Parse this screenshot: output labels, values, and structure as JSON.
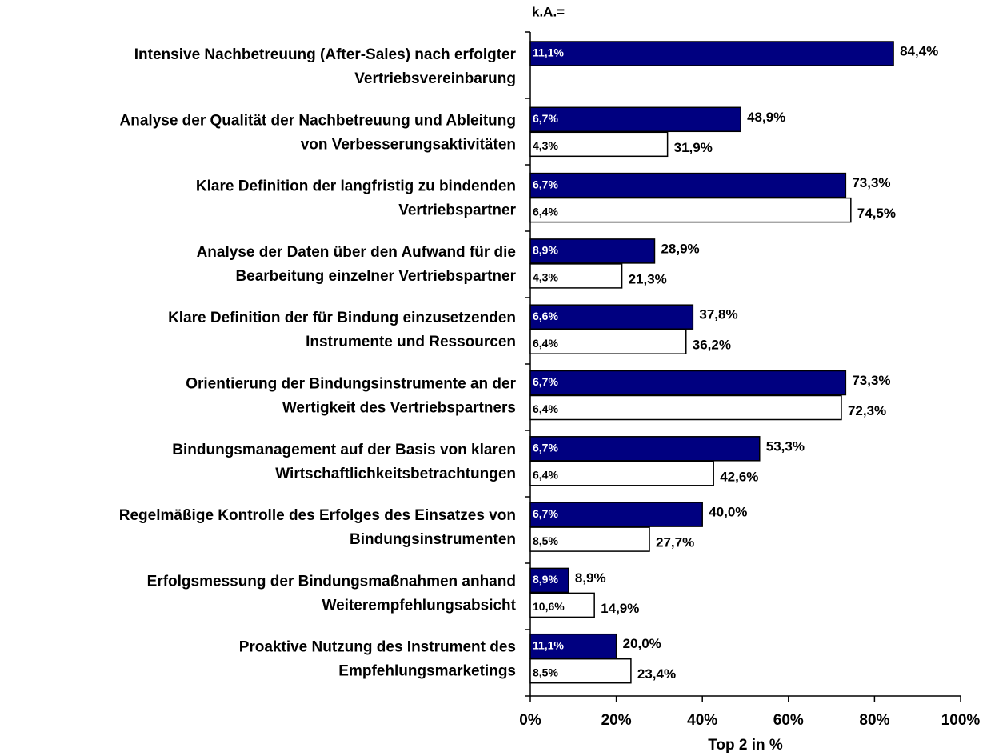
{
  "chart_data": {
    "type": "bar",
    "orientation": "horizontal",
    "ka_title": "k.A.=",
    "xlabel": "Top 2 in %",
    "categories": [
      [
        "Intensive Nachbetreuung (After-Sales) nach erfolgter",
        "Vertriebsvereinbarung"
      ],
      [
        "Analyse der Qualität der Nachbetreuung und Ableitung",
        "von Verbesserungsaktivitäten"
      ],
      [
        "Klare Definition der langfristig zu bindenden",
        "Vertriebspartner"
      ],
      [
        "Analyse der Daten über den Aufwand für die",
        "Bearbeitung einzelner Vertriebspartner"
      ],
      [
        "Klare Definition der für Bindung einzusetzenden",
        "Instrumente und Ressourcen"
      ],
      [
        "Orientierung der Bindungsinstrumente an der",
        "Wertigkeit des Vertriebspartners"
      ],
      [
        "Bindungsmanagement auf der Basis von klaren",
        "Wirtschaftlichkeitsbetrachtungen"
      ],
      [
        "Regelmäßige Kontrolle des Erfolges des Einsatzes von",
        "Bindungsinstrumenten"
      ],
      [
        "Erfolgsmessung der Bindungsmaßnahmen anhand",
        "Weiterempfehlungsabsicht"
      ],
      [
        "Proaktive Nutzung des Instrument des",
        "Empfehlungsmarketings"
      ]
    ],
    "series": [
      {
        "color": "#000080",
        "label_color": "#ffffff",
        "values": [
          84.4,
          48.9,
          73.3,
          28.9,
          37.8,
          73.3,
          53.3,
          40.0,
          8.9,
          20.0
        ],
        "value_labels": [
          "84,4%",
          "48,9%",
          "73,3%",
          "28,9%",
          "37,8%",
          "73,3%",
          "53,3%",
          "40,0%",
          "8,9%",
          "20,0%"
        ],
        "ka_values": [
          11.1,
          6.7,
          6.7,
          8.9,
          6.6,
          6.7,
          6.7,
          6.7,
          8.9,
          11.1
        ],
        "ka_labels": [
          "11,1%",
          "6,7%",
          "6,7%",
          "8,9%",
          "6,6%",
          "6,7%",
          "6,7%",
          "6,7%",
          "8,9%",
          "11,1%"
        ]
      },
      {
        "color": "#ffffff",
        "label_color": "#000000",
        "values": [
          null,
          31.9,
          74.5,
          21.3,
          36.2,
          72.3,
          42.6,
          27.7,
          14.9,
          23.4
        ],
        "value_labels": [
          null,
          "31,9%",
          "74,5%",
          "21,3%",
          "36,2%",
          "72,3%",
          "42,6%",
          "27,7%",
          "14,9%",
          "23,4%"
        ],
        "ka_values": [
          null,
          4.3,
          6.4,
          4.3,
          6.4,
          6.4,
          6.4,
          8.5,
          10.6,
          8.5
        ],
        "ka_labels": [
          null,
          "4,3%",
          "6,4%",
          "4,3%",
          "6,4%",
          "6,4%",
          "6,4%",
          "8,5%",
          "10,6%",
          "8,5%"
        ]
      }
    ],
    "xlim": [
      0,
      100
    ],
    "xticks": [
      {
        "value": 0,
        "label": "0%"
      },
      {
        "value": 20,
        "label": "20%"
      },
      {
        "value": 40,
        "label": "40%"
      },
      {
        "value": 60,
        "label": "60%"
      },
      {
        "value": 80,
        "label": "80%"
      },
      {
        "value": 100,
        "label": "100%"
      }
    ]
  }
}
